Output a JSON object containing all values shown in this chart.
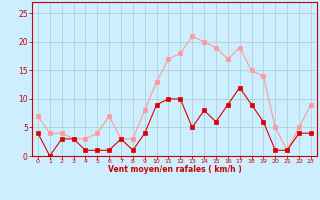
{
  "hours": [
    0,
    1,
    2,
    3,
    4,
    5,
    6,
    7,
    8,
    9,
    10,
    11,
    12,
    13,
    14,
    15,
    16,
    17,
    18,
    19,
    20,
    21,
    22,
    23
  ],
  "wind_avg": [
    4,
    0,
    3,
    3,
    1,
    1,
    1,
    3,
    1,
    4,
    9,
    10,
    10,
    5,
    8,
    6,
    9,
    12,
    9,
    6,
    1,
    1,
    4,
    4
  ],
  "wind_gust": [
    7,
    4,
    4,
    3,
    3,
    4,
    7,
    3,
    3,
    8,
    13,
    17,
    18,
    21,
    20,
    19,
    17,
    19,
    15,
    14,
    5,
    1,
    5,
    9
  ],
  "bg_color": "#cceeff",
  "grid_color": "#aacccc",
  "line_avg_color": "#dd0000",
  "line_gust_color": "#ff9999",
  "xlabel": "Vent moyen/en rafales ( km/h )",
  "xlabel_color": "#cc0000",
  "tick_color": "#cc0000",
  "spine_color": "#cc0000",
  "ylim": [
    0,
    27
  ],
  "yticks": [
    0,
    5,
    10,
    15,
    20,
    25
  ],
  "yticklabels": [
    "0",
    "5",
    "10",
    "15",
    "20",
    "25"
  ],
  "figsize": [
    3.2,
    2.0
  ],
  "dpi": 100
}
